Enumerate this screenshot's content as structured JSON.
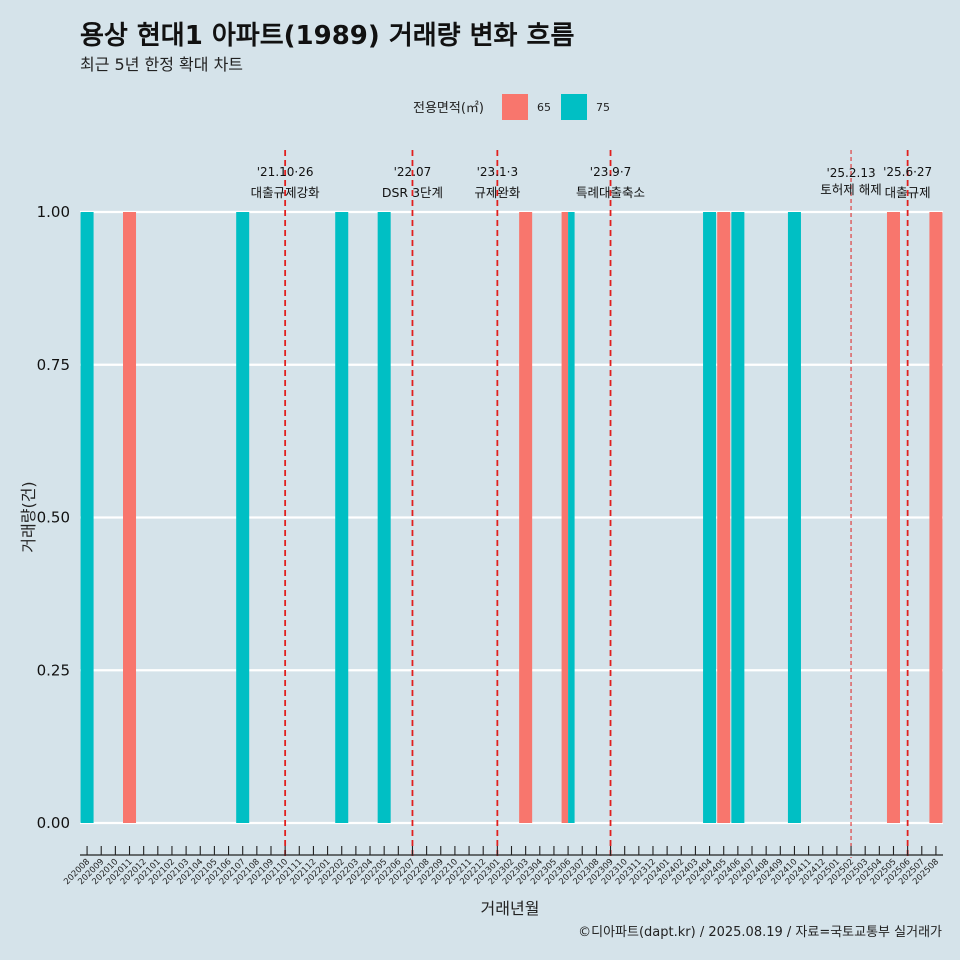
{
  "title": "용상 현대1 아파트(1989) 거래량 변화 흐름",
  "subtitle": "최근 5년 한정 확대 차트",
  "caption": "©디아파트(dapt.kr) / 2025.08.19 / 자료=국토교통부 실거래가",
  "colors": {
    "65": "#f8766d",
    "75": "#00bfc4",
    "event_line": "#e0201e",
    "grid": "#ffffff",
    "background": "#d5e3ea"
  },
  "chart_data": {
    "type": "bar",
    "xlabel": "거래년월",
    "ylabel": "거래량(건)",
    "ylim": [
      0,
      1
    ],
    "yticks": [
      "0.00",
      "0.25",
      "0.50",
      "0.75",
      "1.00"
    ],
    "legend": {
      "title": "전용면적(㎡)",
      "position": "top"
    },
    "categories": [
      "202008",
      "202009",
      "202010",
      "202011",
      "202012",
      "202101",
      "202102",
      "202103",
      "202104",
      "202105",
      "202106",
      "202107",
      "202108",
      "202109",
      "202110",
      "202111",
      "202112",
      "202201",
      "202202",
      "202203",
      "202204",
      "202205",
      "202206",
      "202207",
      "202208",
      "202209",
      "202210",
      "202211",
      "202212",
      "202301",
      "202302",
      "202303",
      "202304",
      "202305",
      "202306",
      "202307",
      "202308",
      "202309",
      "202310",
      "202311",
      "202312",
      "202401",
      "202402",
      "202403",
      "202404",
      "202405",
      "202406",
      "202407",
      "202408",
      "202409",
      "202410",
      "202411",
      "202412",
      "202501",
      "202502",
      "202503",
      "202504",
      "202505",
      "202506",
      "202507",
      "202508"
    ],
    "series": [
      {
        "name": "65",
        "values": [
          0,
          0,
          0,
          1,
          0,
          0,
          0,
          0,
          0,
          0,
          0,
          0,
          0,
          0,
          0,
          0,
          0,
          0,
          0,
          0,
          0,
          0,
          0,
          0,
          0,
          0,
          0,
          0,
          0,
          0,
          0,
          1,
          0,
          0,
          1,
          0,
          0,
          0,
          0,
          0,
          0,
          0,
          0,
          0,
          0,
          1,
          0,
          0,
          0,
          0,
          0,
          0,
          0,
          0,
          0,
          0,
          0,
          1,
          0,
          0,
          1
        ]
      },
      {
        "name": "75",
        "values": [
          1,
          0,
          0,
          0,
          0,
          0,
          0,
          0,
          0,
          0,
          0,
          1,
          0,
          0,
          0,
          0,
          0,
          0,
          1,
          0,
          0,
          1,
          0,
          0,
          0,
          0,
          0,
          0,
          0,
          0,
          0,
          0,
          0,
          0,
          1,
          0,
          0,
          0,
          0,
          0,
          0,
          0,
          0,
          0,
          1,
          0,
          1,
          0,
          0,
          0,
          1,
          0,
          0,
          0,
          0,
          0,
          0,
          0,
          0,
          0,
          0
        ]
      }
    ],
    "events": [
      {
        "month": "202110",
        "date": "'21.10·26",
        "label": "대출규제강화",
        "style": "bold"
      },
      {
        "month": "202207",
        "date": "'22.07",
        "label": "DSR 3단계",
        "style": "bold"
      },
      {
        "month": "202301",
        "date": "'23.1·3",
        "label": "규제완화",
        "style": "bold"
      },
      {
        "month": "202309",
        "date": "'23.9·7",
        "label": "특례대출축소",
        "style": "bold"
      },
      {
        "month": "202502",
        "date": "'25.2.13",
        "label": "토허제 해제",
        "style": "thin"
      },
      {
        "month": "202506",
        "date": "'25.6·27",
        "label": "대출규제",
        "style": "bold"
      }
    ]
  }
}
